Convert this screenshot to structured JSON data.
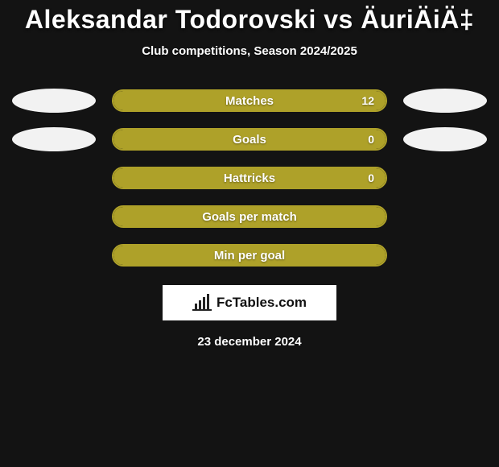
{
  "background_color": "#131313",
  "title": "Aleksandar Todorovski vs ÄuriÄiÄ‡",
  "title_color": "#ffffff",
  "title_fontsize": 32,
  "subtitle": "Club competitions, Season 2024/2025",
  "subtitle_color": "#ffffff",
  "subtitle_fontsize": 15,
  "side_ellipse_color": "#f2f2f2",
  "bar_outline_color": "#aea129",
  "bar_fill_color": "#aea129",
  "bar_label_color": "#ffffff",
  "bar_value_color": "#ffffff",
  "rows": [
    {
      "label": "Matches",
      "value": "12",
      "fill_pct": 100,
      "left_ellipse": true,
      "right_ellipse": true
    },
    {
      "label": "Goals",
      "value": "0",
      "fill_pct": 100,
      "left_ellipse": true,
      "right_ellipse": true
    },
    {
      "label": "Hattricks",
      "value": "0",
      "fill_pct": 100,
      "left_ellipse": false,
      "right_ellipse": false
    },
    {
      "label": "Goals per match",
      "value": "",
      "fill_pct": 100,
      "left_ellipse": false,
      "right_ellipse": false
    },
    {
      "label": "Min per goal",
      "value": "",
      "fill_pct": 100,
      "left_ellipse": false,
      "right_ellipse": false
    }
  ],
  "brand": {
    "text": "FcTables.com",
    "text_color": "#111111",
    "bg_color": "#ffffff",
    "icon_color": "#222222"
  },
  "date": "23 december 2024",
  "date_color": "#ffffff"
}
